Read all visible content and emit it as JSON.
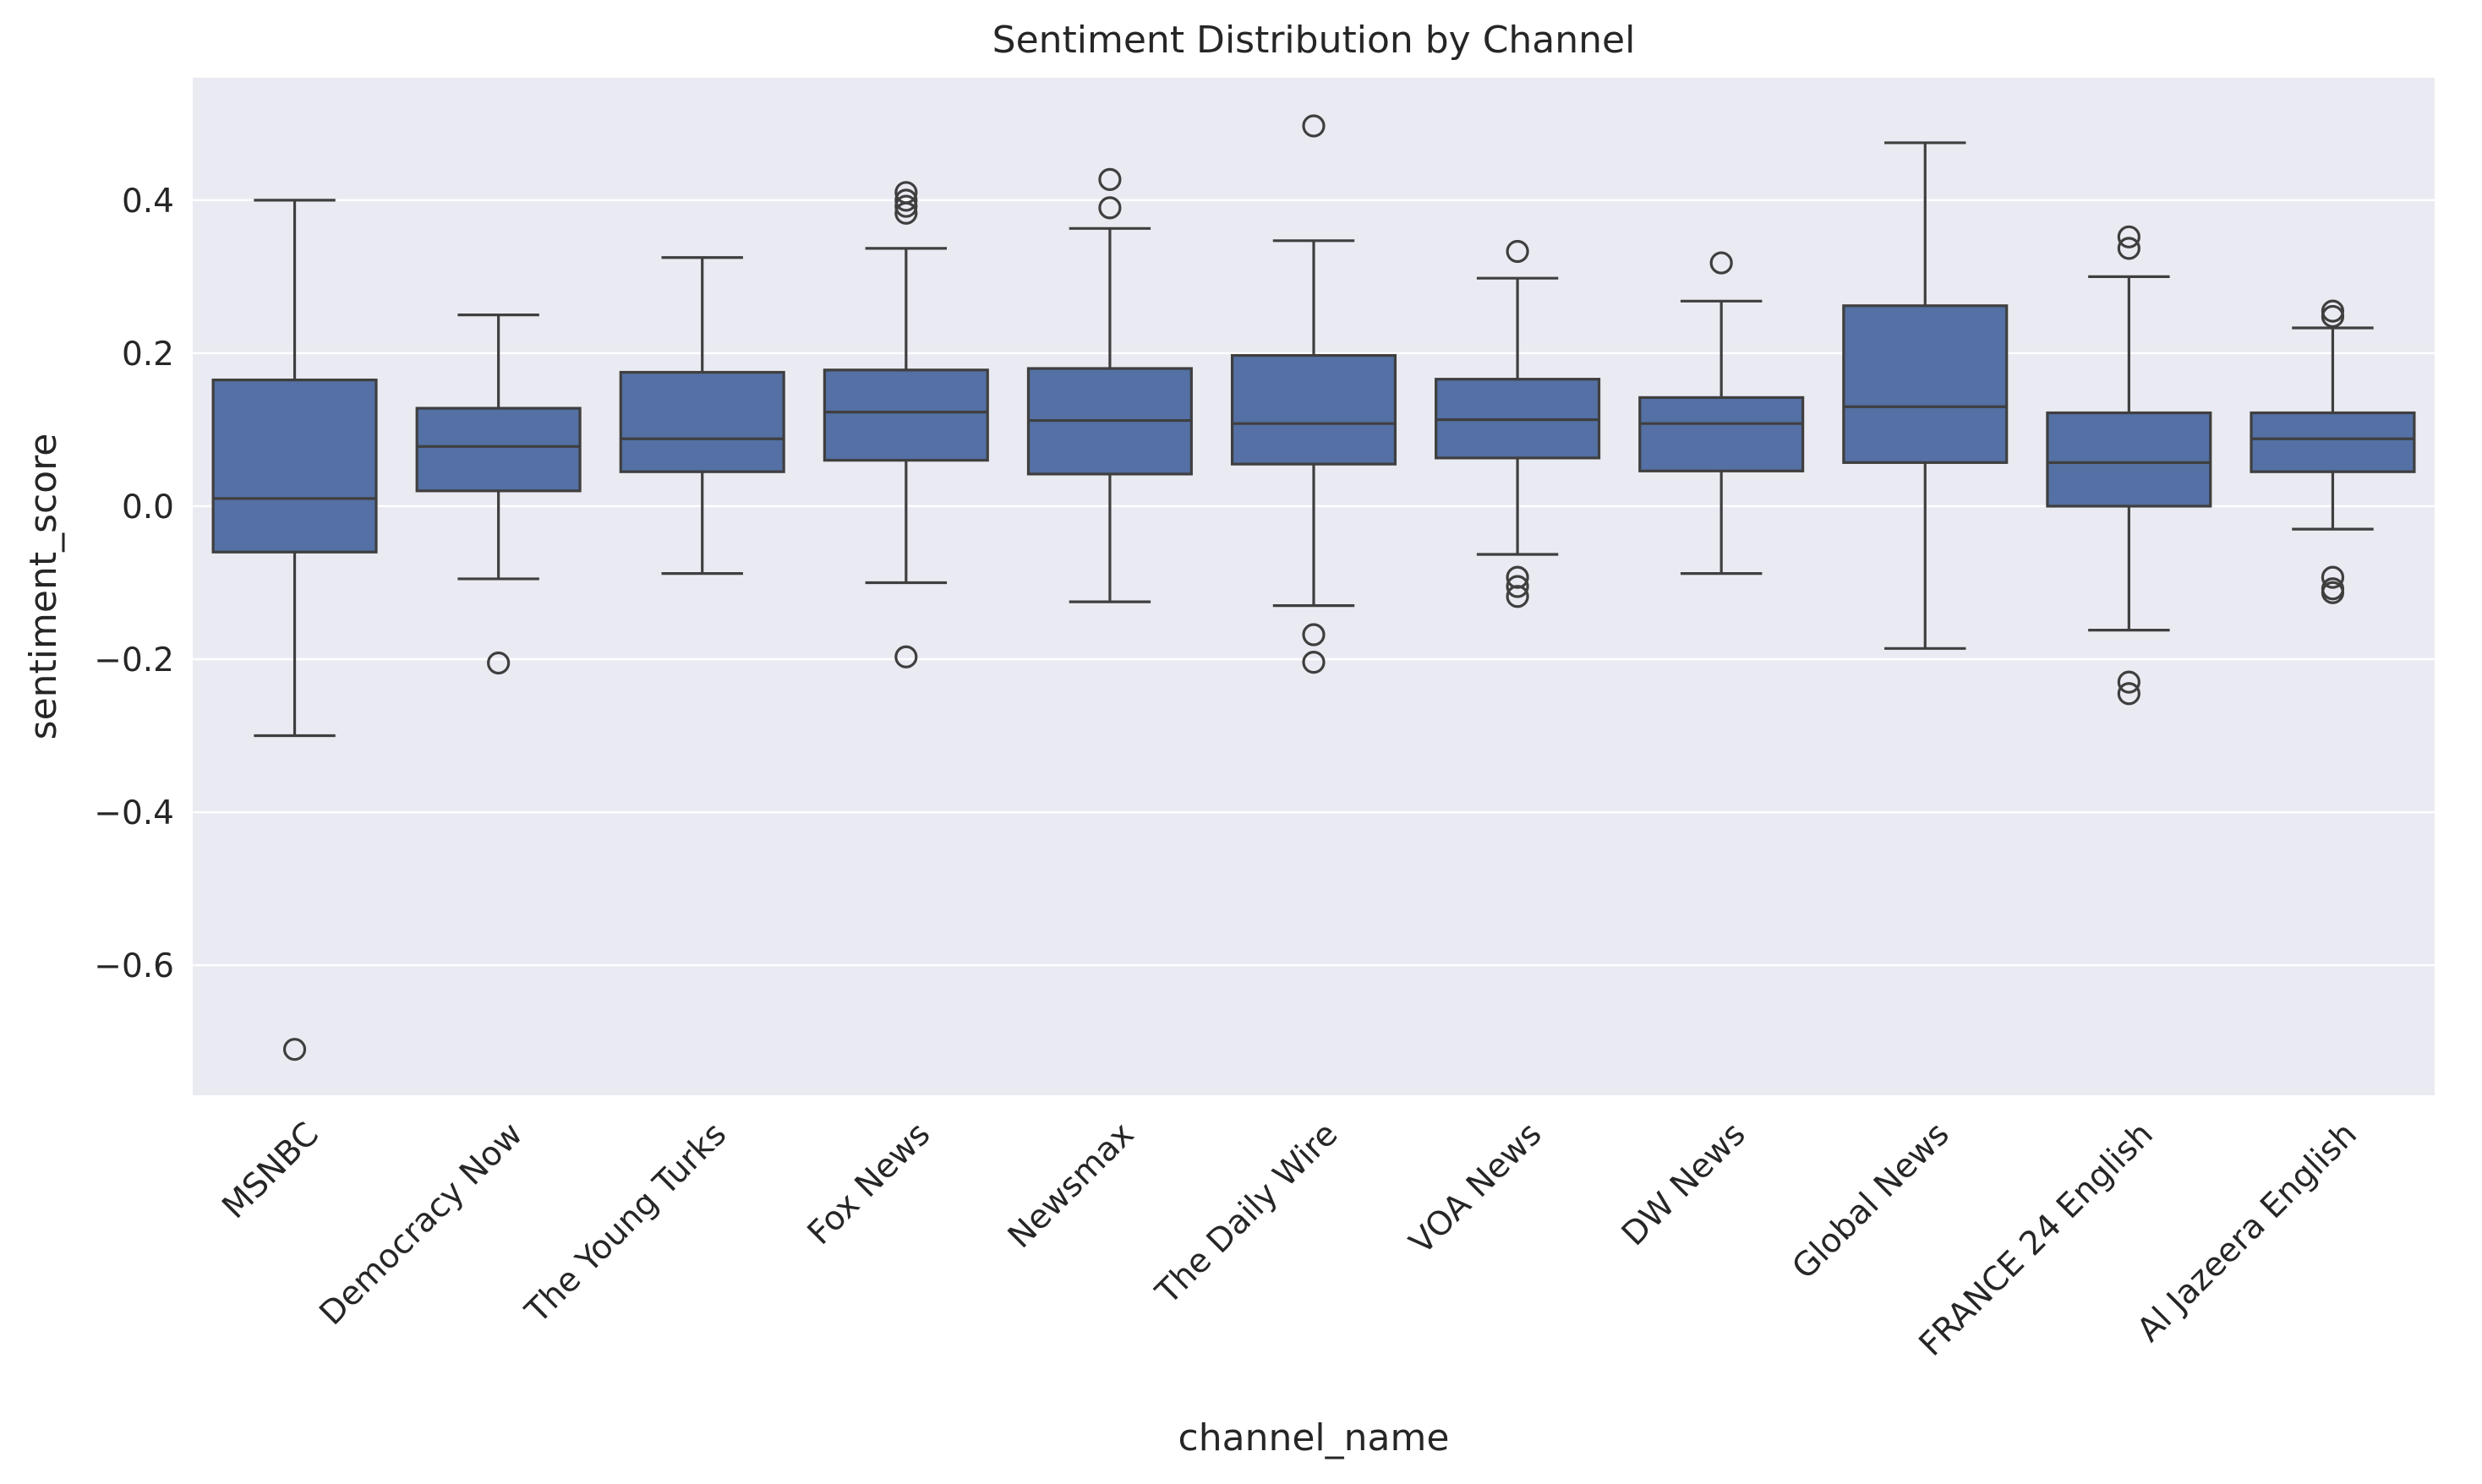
{
  "chart_data": {
    "type": "box",
    "title": "Sentiment Distribution by Channel",
    "xlabel": "channel_name",
    "ylabel": "sentiment_score",
    "ylim": [
      -0.77,
      0.56
    ],
    "yticks": [
      0.4,
      0.2,
      0.0,
      -0.2,
      -0.4,
      -0.6
    ],
    "ytick_labels": [
      "0.4",
      "0.2",
      "0.0",
      "−0.2",
      "−0.4",
      "−0.6"
    ],
    "grid": true,
    "box_color": "#5470a4",
    "edge_color": "#3f3f3f",
    "background_color": "#eaeaf2",
    "grid_color": "#ffffff",
    "categories": [
      "MSNBC",
      "Democracy Now",
      "The Young Turks",
      "Fox News",
      "Newsmax",
      "The Daily Wire",
      "VOA News",
      "DW News",
      "Global News",
      "FRANCE 24 English",
      "Al Jazeera English"
    ],
    "boxes": [
      {
        "whisker_low": -0.3,
        "q1": -0.06,
        "median": 0.01,
        "q3": 0.165,
        "whisker_high": 0.4,
        "outliers": [
          -0.71
        ]
      },
      {
        "whisker_low": -0.095,
        "q1": 0.02,
        "median": 0.078,
        "q3": 0.128,
        "whisker_high": 0.25,
        "outliers": [
          -0.205
        ]
      },
      {
        "whisker_low": -0.088,
        "q1": 0.045,
        "median": 0.088,
        "q3": 0.175,
        "whisker_high": 0.325,
        "outliers": []
      },
      {
        "whisker_low": -0.1,
        "q1": 0.06,
        "median": 0.123,
        "q3": 0.178,
        "whisker_high": 0.337,
        "outliers": [
          -0.197,
          0.383,
          0.392,
          0.4,
          0.41
        ]
      },
      {
        "whisker_low": -0.125,
        "q1": 0.042,
        "median": 0.112,
        "q3": 0.18,
        "whisker_high": 0.363,
        "outliers": [
          0.39,
          0.427
        ]
      },
      {
        "whisker_low": -0.13,
        "q1": 0.055,
        "median": 0.108,
        "q3": 0.197,
        "whisker_high": 0.347,
        "outliers": [
          -0.168,
          -0.204,
          0.497
        ]
      },
      {
        "whisker_low": -0.063,
        "q1": 0.063,
        "median": 0.113,
        "q3": 0.166,
        "whisker_high": 0.298,
        "outliers": [
          -0.093,
          -0.105,
          -0.118,
          0.333
        ]
      },
      {
        "whisker_low": -0.088,
        "q1": 0.046,
        "median": 0.108,
        "q3": 0.142,
        "whisker_high": 0.268,
        "outliers": [
          0.318
        ]
      },
      {
        "whisker_low": -0.186,
        "q1": 0.057,
        "median": 0.13,
        "q3": 0.262,
        "whisker_high": 0.475,
        "outliers": []
      },
      {
        "whisker_low": -0.162,
        "q1": 0.0,
        "median": 0.057,
        "q3": 0.122,
        "whisker_high": 0.3,
        "outliers": [
          -0.23,
          -0.245,
          0.337,
          0.352
        ]
      },
      {
        "whisker_low": -0.03,
        "q1": 0.045,
        "median": 0.088,
        "q3": 0.122,
        "whisker_high": 0.233,
        "outliers": [
          -0.093,
          -0.108,
          -0.113,
          0.248,
          0.255
        ]
      }
    ]
  }
}
